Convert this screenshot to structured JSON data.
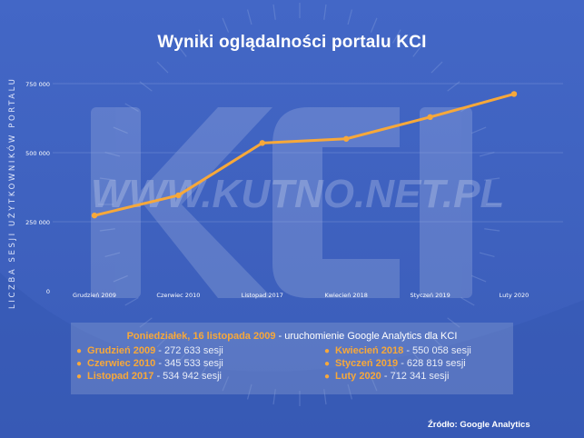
{
  "chart_data": {
    "type": "line",
    "title": "Wyniki oglądalności portalu KCI",
    "ylabel": "LICZBA SESJI UŻYTKOWNIKÓW PORTALU",
    "xlabel": "",
    "categories": [
      "Grudzień 2009",
      "Czerwiec 2010",
      "Listopad 2017",
      "Kwiecień 2018",
      "Styczeń 2019",
      "Luty 2020"
    ],
    "series": [
      {
        "values": [
          272633,
          345533,
          534942,
          550058,
          628819,
          712341
        ]
      }
    ],
    "yticks": [
      0,
      250000,
      500000,
      750000
    ],
    "ytick_labels": [
      "0",
      "250 000",
      "500 000",
      "750 000"
    ],
    "ylim": [
      0,
      750000
    ],
    "grid": true,
    "line_color": "#f7a83a"
  },
  "watermark": {
    "text": "WWW.KUTNO.NET.PL",
    "logo": "KCI"
  },
  "info": {
    "headline_date": "Poniedziałek, 16 listopada 2009",
    "headline_rest": " - uruchomienie Google Analytics dla KCI",
    "left": [
      {
        "date": "Grudzień 2009",
        "value": " - 272 633 sesji"
      },
      {
        "date": "Czerwiec 2010",
        "value": " - 345 533 sesji"
      },
      {
        "date": "Listopad 2017",
        "value": " - 534 942 sesji"
      }
    ],
    "right": [
      {
        "date": "Kwiecień 2018",
        "value": " - 550 058 sesji"
      },
      {
        "date": "Styczeń 2019",
        "value": " -  628 819 sesji"
      },
      {
        "date": "Luty 2020",
        "value": " -  712 341 sesji"
      }
    ]
  },
  "source": "Źródło: Google Analytics",
  "colors": {
    "background": "#3f63c2",
    "accent": "#f7a83a"
  }
}
